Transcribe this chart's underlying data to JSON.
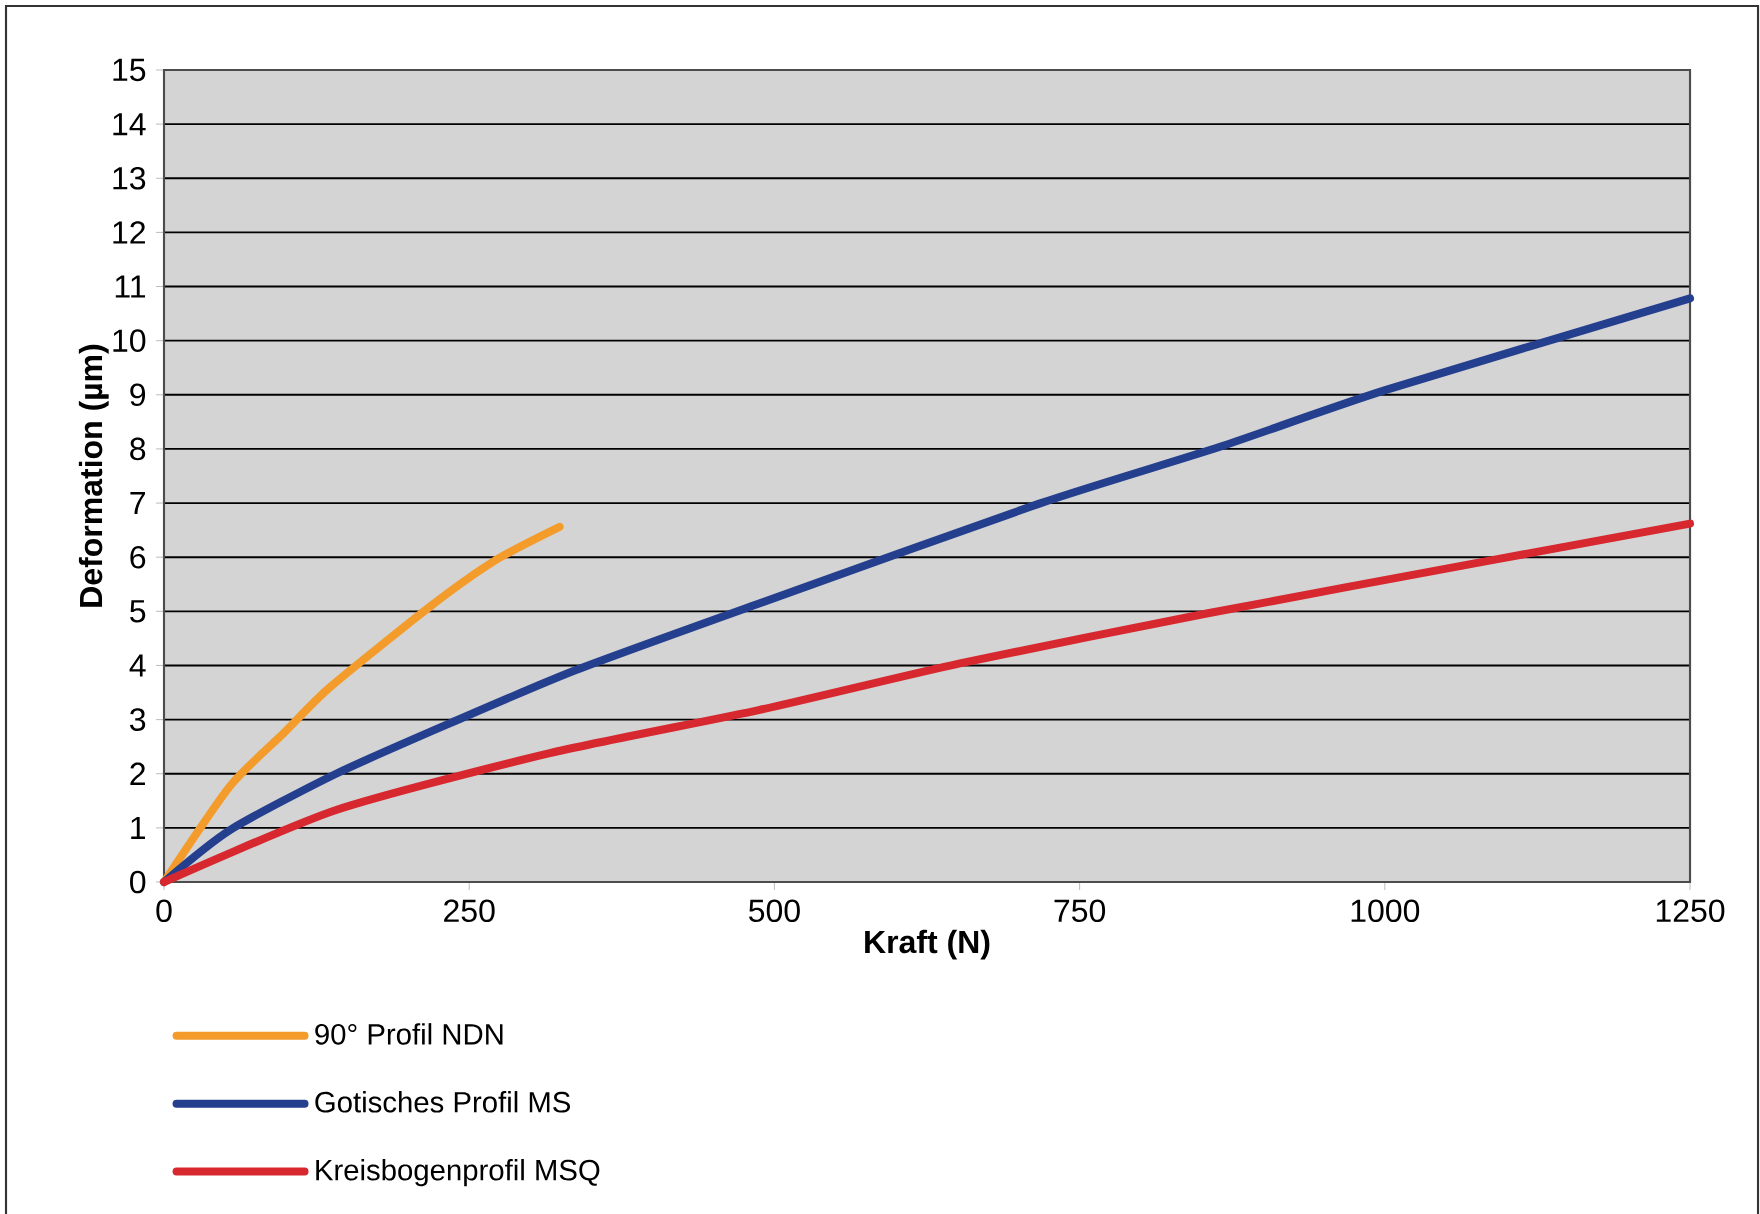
{
  "chart_data": {
    "type": "line",
    "xlabel": "Kraft (N)",
    "ylabel": "Deformation (µm)",
    "xlim": [
      0,
      1250
    ],
    "ylim": [
      0,
      15
    ],
    "xticks": [
      0,
      250,
      500,
      750,
      1000,
      1250
    ],
    "yticks": [
      0,
      1,
      2,
      3,
      4,
      5,
      6,
      7,
      8,
      9,
      10,
      11,
      12,
      13,
      14,
      15
    ],
    "grid": "y",
    "legend": "bottom",
    "series": [
      {
        "name": "90° Profil NDN",
        "color": "#f39c2c",
        "x": [
          0,
          54,
          98,
          136,
          218,
          272,
          324
        ],
        "values": [
          0,
          1.77,
          2.75,
          3.6,
          5.09,
          5.95,
          6.56
        ]
      },
      {
        "name": "Gotisches Profil MS",
        "color": "#253f8f",
        "x": [
          0,
          54,
          141,
          234,
          338,
          488,
          717,
          865,
          1001,
          1250
        ],
        "values": [
          0,
          0.96,
          2.0,
          2.93,
          3.92,
          5.15,
          6.99,
          8.04,
          9.09,
          10.78
        ]
      },
      {
        "name": "Kreisbogenprofil MSQ",
        "color": "#d7282f",
        "x": [
          0,
          141,
          316,
          488,
          652,
          854,
          1089,
          1250
        ],
        "values": [
          0,
          1.33,
          2.38,
          3.18,
          4.04,
          4.96,
          5.95,
          6.62
        ]
      }
    ]
  }
}
